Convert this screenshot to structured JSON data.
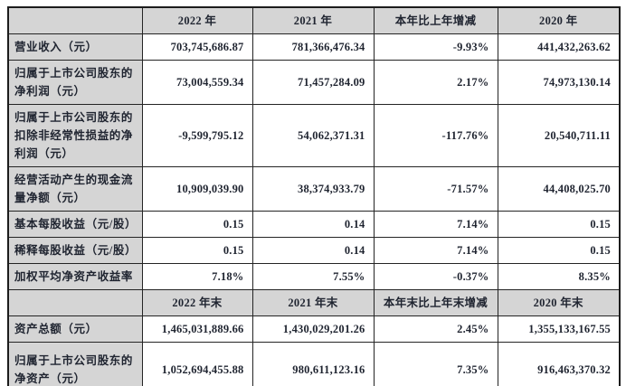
{
  "document": {
    "type": "financial-summary-table",
    "language": "zh-CN"
  },
  "colors": {
    "cell_shade": "#d5d5d5",
    "data_cell_bg": "#ffffff",
    "border": "#242424",
    "text": "#1f2430"
  },
  "table": {
    "sections": [
      {
        "header": {
          "corner": "",
          "cols": [
            "2022 年",
            "2021 年",
            "本年比上年增减",
            "2020 年"
          ]
        },
        "rows": [
          {
            "label": "营业收入（元）",
            "values": [
              "703,745,686.87",
              "781,366,476.34",
              "-9.93%",
              "441,432,263.62"
            ]
          },
          {
            "label": "归属于上市公司股东的净利润（元）",
            "values": [
              "73,004,559.34",
              "71,457,284.09",
              "2.17%",
              "74,973,130.14"
            ]
          },
          {
            "label": "归属于上市公司股东的扣除非经常性损益的净利润（元）",
            "values": [
              "-9,599,795.12",
              "54,062,371.31",
              "-117.76%",
              "20,540,711.11"
            ]
          },
          {
            "label": "经营活动产生的现金流量净额（元）",
            "values": [
              "10,909,039.90",
              "38,374,933.79",
              "-71.57%",
              "44,408,025.70"
            ]
          },
          {
            "label": "基本每股收益（元/股）",
            "values": [
              "0.15",
              "0.14",
              "7.14%",
              "0.15"
            ]
          },
          {
            "label": "稀释每股收益（元/股）",
            "values": [
              "0.15",
              "0.14",
              "7.14%",
              "0.15"
            ]
          },
          {
            "label": "加权平均净资产收益率",
            "values": [
              "7.18%",
              "7.55%",
              "-0.37%",
              "8.35%"
            ]
          }
        ]
      },
      {
        "header": {
          "corner": "",
          "cols": [
            "2022 年末",
            "2021 年末",
            "本年末比上年末增减",
            "2020 年末"
          ]
        },
        "rows": [
          {
            "label": "资产总额（元）",
            "values": [
              "1,465,031,889.66",
              "1,430,029,201.26",
              "2.45%",
              "1,355,133,167.55"
            ]
          },
          {
            "label": "归属于上市公司股东的净资产（元）",
            "values": [
              "1,052,694,455.88",
              "980,611,123.16",
              "7.35%",
              "916,463,370.32"
            ]
          }
        ]
      }
    ]
  }
}
